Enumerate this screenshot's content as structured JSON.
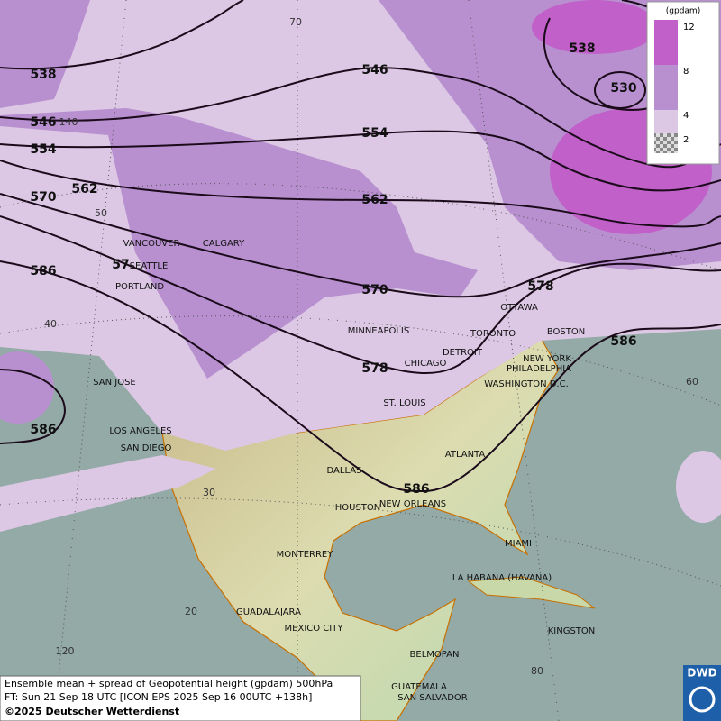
{
  "map": {
    "contour_labels": [
      538,
      546,
      538,
      530,
      546,
      554,
      554,
      562,
      562,
      570,
      570,
      578,
      578,
      586,
      586,
      586,
      586,
      57
    ],
    "cities": [
      "VANCOUVER",
      "CALGARY",
      "SEATTLE",
      "PORTLAND",
      "MINNEAPOLIS",
      "TORONTO",
      "OTTAWA",
      "DETROIT",
      "CHICAGO",
      "BOSTON",
      "NEW YORK",
      "PHILADELPHIA",
      "WASHINGTON D.C.",
      "SAN JOSE",
      "ST. LOUIS",
      "LOS ANGELES",
      "SAN DIEGO",
      "ATLANTA",
      "DALLAS",
      "HOUSTON",
      "NEW ORLEANS",
      "MIAMI",
      "MONTERREY",
      "LA HABANA (HAVANA)",
      "GUADALAJARA",
      "MEXICO CITY",
      "KINGSTON",
      "BELMOPAN",
      "GUATEMALA",
      "SAN SALVADOR"
    ],
    "graticule_labels": [
      "70",
      "140",
      "50",
      "40",
      "30",
      "20",
      "120",
      "80",
      "60"
    ]
  },
  "legend": {
    "unit": "(gpdam)",
    "ticks": [
      12,
      8,
      4,
      2
    ]
  },
  "caption": [
    "Ensemble mean + spread of Geopotential height (gpdam) 500hPa",
    "FT: Sun 21 Sep 18 UTC [ICON EPS 2025 Sep 16 00UTC +138h]",
    "©2025 Deutscher Wetterdienst"
  ],
  "logo": "DWD"
}
